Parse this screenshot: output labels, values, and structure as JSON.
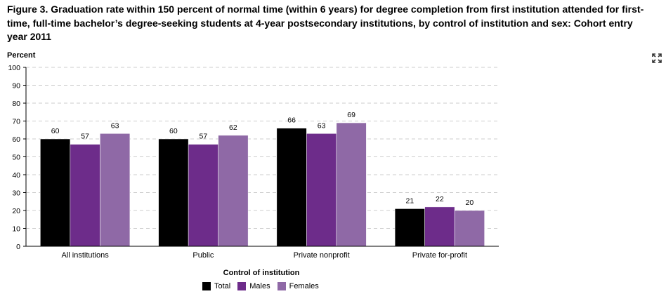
{
  "chart_data": {
    "type": "bar",
    "title": "Figure 3. Graduation rate within 150 percent of normal time (within 6 years) for degree completion from first institution attended for first-time, full-time bachelor’s degree-seeking students at 4-year postsecondary institutions, by control of institution and sex: Cohort entry year 2011",
    "ylabel": "Percent",
    "xlabel": "Control of institution",
    "ylim": [
      0,
      100
    ],
    "yticks": [
      0,
      10,
      20,
      30,
      40,
      50,
      60,
      70,
      80,
      90,
      100
    ],
    "grid": true,
    "legend_position": "bottom",
    "categories": [
      "All institutions",
      "Public",
      "Private nonprofit",
      "Private for-profit"
    ],
    "series": [
      {
        "name": "Total",
        "color": "#000000",
        "values": [
          60,
          60,
          66,
          21
        ]
      },
      {
        "name": "Males",
        "color": "#6d2c8a",
        "values": [
          57,
          57,
          63,
          22
        ]
      },
      {
        "name": "Females",
        "color": "#8f69a6",
        "values": [
          63,
          62,
          69,
          20
        ]
      }
    ]
  },
  "icons": {
    "expand": "expand-icon"
  }
}
